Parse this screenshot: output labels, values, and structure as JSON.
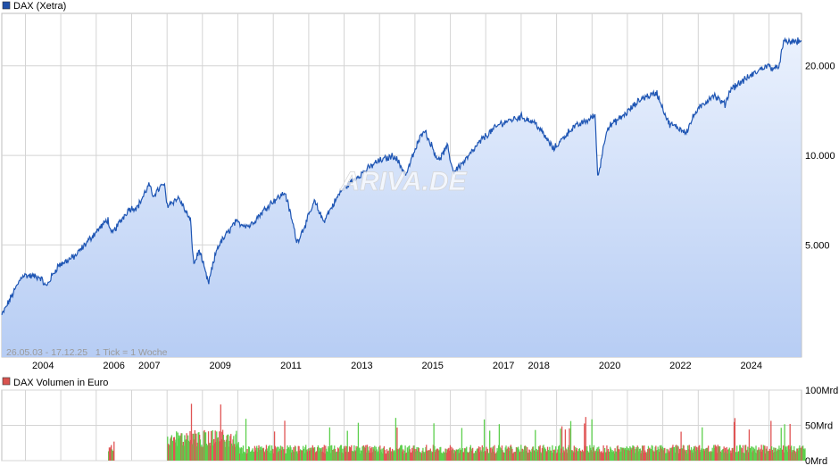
{
  "price_panel": {
    "legend": {
      "label": "DAX (Xetra)",
      "color": "#1f4fa8"
    },
    "watermark": "ARIVA.DE",
    "info_text": "26.05.03 - 17.12.25   1 Tick = 1 Woche",
    "y_tick_labels": [
      "20.000",
      "10.000",
      "5.000"
    ]
  },
  "x_axis": {
    "year_labels": [
      "2004",
      "2006",
      "2007",
      "2009",
      "2011",
      "2013",
      "2015",
      "2017",
      "2018",
      "2020",
      "2022",
      "2024"
    ]
  },
  "volume_panel": {
    "legend": {
      "label": "DAX Volumen in Euro",
      "color": "#d9534f"
    },
    "y_tick_labels": [
      "100Mrd",
      "50Mrd",
      "0Mrd"
    ]
  },
  "colors": {
    "line": "#1f56b4",
    "area_top": "#eaf1fd",
    "area_bottom": "#b7cdf4",
    "grid": "#d4d4d4",
    "vol_up": "#5ccf4c",
    "vol_down": "#e05454"
  },
  "chart_data": [
    {
      "type": "area",
      "series": [
        {
          "name": "DAX (Xetra)",
          "points": [
            [
              "2003-05",
              2900
            ],
            [
              "2003-12",
              3960
            ],
            [
              "2004-06",
              3900
            ],
            [
              "2004-08",
              3620
            ],
            [
              "2004-12",
              4250
            ],
            [
              "2005-06",
              4600
            ],
            [
              "2005-12",
              5400
            ],
            [
              "2006-05",
              6100
            ],
            [
              "2006-06",
              5400
            ],
            [
              "2006-12",
              6600
            ],
            [
              "2007-03",
              6700
            ],
            [
              "2007-07",
              8000
            ],
            [
              "2007-08",
              7300
            ],
            [
              "2007-12",
              8050
            ],
            [
              "2008-01",
              6800
            ],
            [
              "2008-05",
              7200
            ],
            [
              "2008-09",
              6000
            ],
            [
              "2008-10",
              4300
            ],
            [
              "2008-12",
              4800
            ],
            [
              "2009-03",
              3700
            ],
            [
              "2009-06",
              4900
            ],
            [
              "2009-12",
              5950
            ],
            [
              "2010-05",
              5800
            ],
            [
              "2010-12",
              6900
            ],
            [
              "2011-05",
              7500
            ],
            [
              "2011-08",
              5700
            ],
            [
              "2011-09",
              5100
            ],
            [
              "2011-12",
              5900
            ],
            [
              "2012-03",
              7000
            ],
            [
              "2012-06",
              6000
            ],
            [
              "2012-12",
              7600
            ],
            [
              "2013-05",
              8400
            ],
            [
              "2013-12",
              9500
            ],
            [
              "2014-06",
              10000
            ],
            [
              "2014-10",
              8600
            ],
            [
              "2014-12",
              9800
            ],
            [
              "2015-04",
              12300
            ],
            [
              "2015-09",
              9600
            ],
            [
              "2015-12",
              10700
            ],
            [
              "2016-02",
              8800
            ],
            [
              "2016-06",
              9600
            ],
            [
              "2016-12",
              11400
            ],
            [
              "2017-06",
              12800
            ],
            [
              "2018-01",
              13500
            ],
            [
              "2018-06",
              12800
            ],
            [
              "2018-12",
              10500
            ],
            [
              "2019-06",
              12300
            ],
            [
              "2019-12",
              13200
            ],
            [
              "2020-02",
              13700
            ],
            [
              "2020-03",
              8400
            ],
            [
              "2020-06",
              12300
            ],
            [
              "2020-12",
              13700
            ],
            [
              "2021-06",
              15600
            ],
            [
              "2021-11",
              16200
            ],
            [
              "2022-03",
              12800
            ],
            [
              "2022-09",
              12000
            ],
            [
              "2022-12",
              13900
            ],
            [
              "2023-06",
              16000
            ],
            [
              "2023-10",
              14800
            ],
            [
              "2023-12",
              16750
            ],
            [
              "2024-06",
              18300
            ],
            [
              "2024-12",
              20000
            ],
            [
              "2025-04",
              19500
            ],
            [
              "2025-06",
              24000
            ],
            [
              "2025-12",
              24200
            ]
          ]
        }
      ],
      "scale": "log",
      "ylim": [
        2100,
        30000
      ],
      "y_ticks": [
        5000,
        10000,
        20000
      ],
      "xlim": [
        "2003-05",
        "2025-12"
      ],
      "grid": true,
      "legend_position": "top-left"
    },
    {
      "type": "bar",
      "series": [
        {
          "name": "DAX Volumen in Euro",
          "unit": "Mrd",
          "segments": [
            {
              "from": "2006-05",
              "to": "2006-06",
              "typical": 18,
              "peak": 30
            },
            {
              "from": "2008-01",
              "to": "2009-12",
              "typical": 35,
              "peak": 82
            },
            {
              "from": "2010-01",
              "to": "2025-12",
              "typical": 18,
              "peak": 62
            }
          ]
        }
      ],
      "ylim": [
        0,
        100
      ],
      "y_ticks": [
        0,
        50,
        100
      ],
      "grid": true,
      "legend_position": "top-left"
    }
  ]
}
